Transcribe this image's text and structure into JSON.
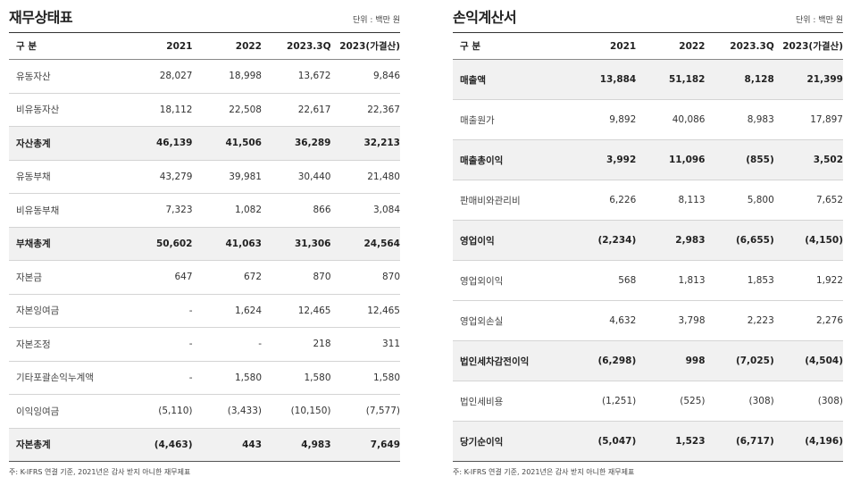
{
  "balance": {
    "title": "재무상태표",
    "unit": "단위 : 백만 원",
    "headers": [
      "구 분",
      "2021",
      "2022",
      "2023.3Q",
      "2023(가결산)"
    ],
    "rows": [
      {
        "label": "유동자산",
        "values": [
          "28,027",
          "18,998",
          "13,672",
          "9,846"
        ],
        "bold": false
      },
      {
        "label": "비유동자산",
        "values": [
          "18,112",
          "22,508",
          "22,617",
          "22,367"
        ],
        "bold": false
      },
      {
        "label": "자산총계",
        "values": [
          "46,139",
          "41,506",
          "36,289",
          "32,213"
        ],
        "bold": true
      },
      {
        "label": "유동부채",
        "values": [
          "43,279",
          "39,981",
          "30,440",
          "21,480"
        ],
        "bold": false
      },
      {
        "label": "비유동부채",
        "values": [
          "7,323",
          "1,082",
          "866",
          "3,084"
        ],
        "bold": false
      },
      {
        "label": "부채총계",
        "values": [
          "50,602",
          "41,063",
          "31,306",
          "24,564"
        ],
        "bold": true
      },
      {
        "label": "자본금",
        "values": [
          "647",
          "672",
          "870",
          "870"
        ],
        "bold": false
      },
      {
        "label": "자본잉여금",
        "values": [
          "-",
          "1,624",
          "12,465",
          "12,465"
        ],
        "bold": false
      },
      {
        "label": "자본조정",
        "values": [
          "-",
          "-",
          "218",
          "311"
        ],
        "bold": false
      },
      {
        "label": "기타포괄손익누계액",
        "values": [
          "-",
          "1,580",
          "1,580",
          "1,580"
        ],
        "bold": false
      },
      {
        "label": "이익잉여금",
        "values": [
          "(5,110)",
          "(3,433)",
          "(10,150)",
          "(7,577)"
        ],
        "bold": false
      },
      {
        "label": "자본총계",
        "values": [
          "(4,463)",
          "443",
          "4,983",
          "7,649"
        ],
        "bold": true
      }
    ],
    "note": "주: K-IFRS 연결 기준, 2021년은 감사 받지 아니한 재무제표"
  },
  "income": {
    "title": "손익계산서",
    "unit": "단위 : 백만 원",
    "headers": [
      "구 분",
      "2021",
      "2022",
      "2023.3Q",
      "2023(가결산)"
    ],
    "rows": [
      {
        "label": "매출액",
        "values": [
          "13,884",
          "51,182",
          "8,128",
          "21,399"
        ],
        "bold": true
      },
      {
        "label": "매출원가",
        "values": [
          "9,892",
          "40,086",
          "8,983",
          "17,897"
        ],
        "bold": false
      },
      {
        "label": "매출총이익",
        "values": [
          "3,992",
          "11,096",
          "(855)",
          "3,502"
        ],
        "bold": true
      },
      {
        "label": "판매비와관리비",
        "values": [
          "6,226",
          "8,113",
          "5,800",
          "7,652"
        ],
        "bold": false
      },
      {
        "label": "영업이익",
        "values": [
          "(2,234)",
          "2,983",
          "(6,655)",
          "(4,150)"
        ],
        "bold": true
      },
      {
        "label": "영업외이익",
        "values": [
          "568",
          "1,813",
          "1,853",
          "1,922"
        ],
        "bold": false
      },
      {
        "label": "영업외손실",
        "values": [
          "4,632",
          "3,798",
          "2,223",
          "2,276"
        ],
        "bold": false
      },
      {
        "label": "법인세차감전이익",
        "values": [
          "(6,298)",
          "998",
          "(7,025)",
          "(4,504)"
        ],
        "bold": true
      },
      {
        "label": "법인세비용",
        "values": [
          "(1,251)",
          "(525)",
          "(308)",
          "(308)"
        ],
        "bold": false
      },
      {
        "label": "당기순이익",
        "values": [
          "(5,047)",
          "1,523",
          "(6,717)",
          "(4,196)"
        ],
        "bold": true
      }
    ],
    "note": "주: K-IFRS 연결 기준, 2021년은 감사 받지 아니한 재무제표"
  }
}
